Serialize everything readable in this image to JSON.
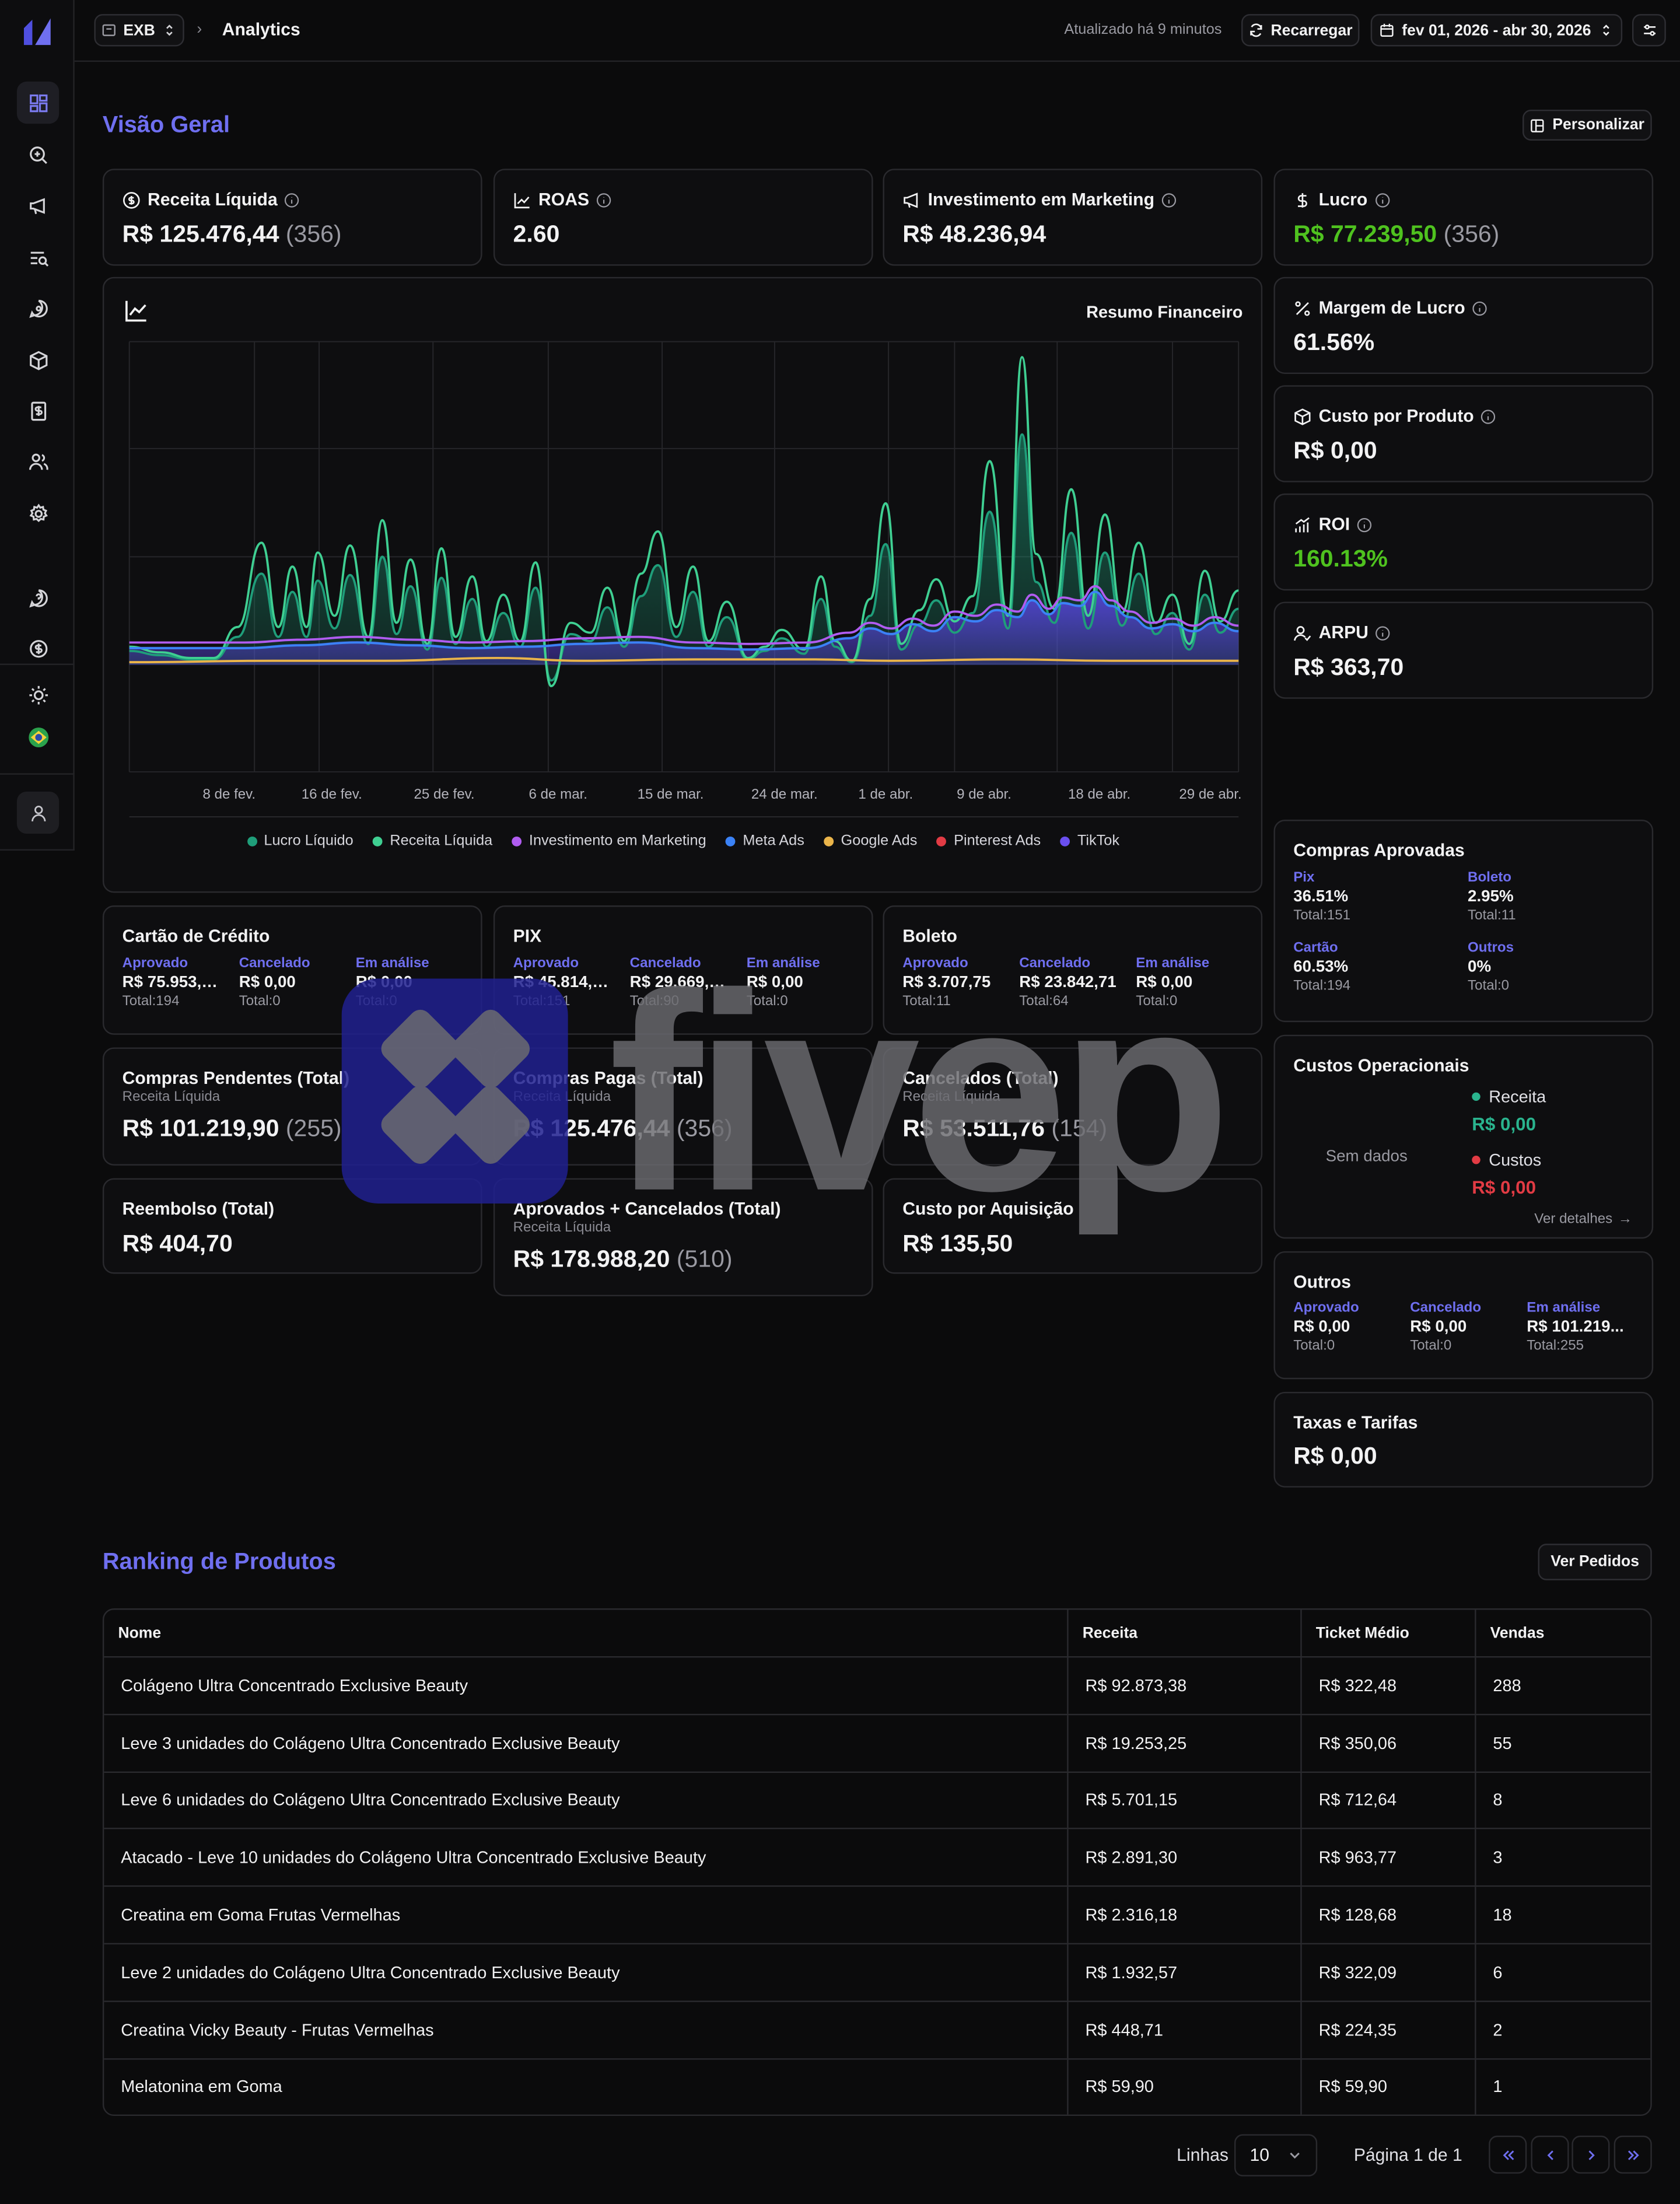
{
  "header": {
    "store_badge": "EXB",
    "breadcrumb": "Analytics",
    "updated": "Atualizado há 9 minutos",
    "reload_label": "Recarregar",
    "date_range": "fev 01, 2026 - abr 30, 2026"
  },
  "overview": {
    "title": "Visão Geral",
    "customize_label": "Personalizar",
    "kpis": {
      "receita_liquida": {
        "label": "Receita Líquida",
        "value": "R$ 125.476,44",
        "count": "(356)"
      },
      "roas": {
        "label": "ROAS",
        "value": "2.60"
      },
      "investimento": {
        "label": "Investimento em Marketing",
        "value": "R$ 48.236,94"
      },
      "lucro": {
        "label": "Lucro",
        "value": "R$ 77.239,50",
        "count": "(356)"
      },
      "margem": {
        "label": "Margem de Lucro",
        "value": "61.56%"
      },
      "custo_produto": {
        "label": "Custo por Produto",
        "value": "R$ 0,00"
      },
      "roi": {
        "label": "ROI",
        "value": "160.13%"
      },
      "arpu": {
        "label": "ARPU",
        "value": "R$ 363,70"
      }
    },
    "chart_title": "Resumo Financeiro"
  },
  "chart_data": {
    "type": "area",
    "title": "Resumo Financeiro",
    "x_ticks": [
      "8 de fev.",
      "16 de fev.",
      "25 de fev.",
      "6 de mar.",
      "15 de mar.",
      "24 de mar.",
      "1 de abr.",
      "9 de abr.",
      "18 de abr.",
      "29 de abr."
    ],
    "grid": true,
    "legend_position": "bottom",
    "series": [
      {
        "name": "Lucro Líquido",
        "color": "#1f9e7a"
      },
      {
        "name": "Receita Líquida",
        "color": "#3fcf92"
      },
      {
        "name": "Investimento em Marketing",
        "color": "#b05cf0"
      },
      {
        "name": "Meta Ads",
        "color": "#3b82f6"
      },
      {
        "name": "Google Ads",
        "color": "#eab44a"
      },
      {
        "name": "Pinterest Ads",
        "color": "#e23b44"
      },
      {
        "name": "TikTok",
        "color": "#6a4ff0"
      }
    ]
  },
  "payments": {
    "credito": {
      "title": "Cartão de Crédito",
      "cols": [
        {
          "label": "Aprovado",
          "value": "R$ 75.953,…",
          "total": "Total:194"
        },
        {
          "label": "Cancelado",
          "value": "R$ 0,00",
          "total": "Total:0"
        },
        {
          "label": "Em análise",
          "value": "R$ 0,00",
          "total": "Total:0"
        }
      ]
    },
    "pix": {
      "title": "PIX",
      "cols": [
        {
          "label": "Aprovado",
          "value": "R$ 45.814,…",
          "total": "Total:151"
        },
        {
          "label": "Cancelado",
          "value": "R$ 29.669,…",
          "total": "Total:90"
        },
        {
          "label": "Em análise",
          "value": "R$ 0,00",
          "total": "Total:0"
        }
      ]
    },
    "boleto": {
      "title": "Boleto",
      "cols": [
        {
          "label": "Aprovado",
          "value": "R$ 3.707,75",
          "total": "Total:11"
        },
        {
          "label": "Cancelado",
          "value": "R$ 23.842,71",
          "total": "Total:64"
        },
        {
          "label": "Em análise",
          "value": "R$ 0,00",
          "total": "Total:0"
        }
      ]
    }
  },
  "totals": {
    "pendentes": {
      "title": "Compras Pendentes (Total)",
      "sub": "Receita Líquida",
      "value": "R$ 101.219,90",
      "count": "(255)"
    },
    "pagas": {
      "title": "Compras Pagas (Total)",
      "sub": "Receita Líquida",
      "value": "R$ 125.476,44",
      "count": "(356)"
    },
    "cancelados": {
      "title": "Cancelados (Total)",
      "sub": "Receita Líquida",
      "value": "R$ 53.511,76",
      "count": "(154)"
    },
    "reembolso": {
      "title": "Reembolso (Total)",
      "value": "R$ 404,70"
    },
    "aprov_canc": {
      "title": "Aprovados + Cancelados (Total)",
      "sub": "Receita Líquida",
      "value": "R$ 178.988,20",
      "count": "(510)"
    },
    "cpa": {
      "title": "Custo por Aquisição",
      "value": "R$ 135,50"
    }
  },
  "compras_aprovadas": {
    "title": "Compras Aprovadas",
    "items": [
      {
        "label": "Pix",
        "pct": "36.51%",
        "total": "Total:151"
      },
      {
        "label": "Boleto",
        "pct": "2.95%",
        "total": "Total:11"
      },
      {
        "label": "Cartão",
        "pct": "60.53%",
        "total": "Total:194"
      },
      {
        "label": "Outros",
        "pct": "0%",
        "total": "Total:0"
      }
    ]
  },
  "custos_operacionais": {
    "title": "Custos Operacionais",
    "empty": "Sem dados",
    "receita_label": "Receita",
    "receita_value": "R$ 0,00",
    "custos_label": "Custos",
    "custos_value": "R$ 0,00",
    "details_link": "Ver detalhes"
  },
  "outros": {
    "title": "Outros",
    "cols": [
      {
        "label": "Aprovado",
        "value": "R$ 0,00",
        "total": "Total:0"
      },
      {
        "label": "Cancelado",
        "value": "R$ 0,00",
        "total": "Total:0"
      },
      {
        "label": "Em análise",
        "value": "R$ 101.219...",
        "total": "Total:255"
      }
    ]
  },
  "taxas": {
    "title": "Taxas e Tarifas",
    "value": "R$ 0,00"
  },
  "ranking": {
    "title": "Ranking de Produtos",
    "orders_button": "Ver Pedidos",
    "columns": [
      "Nome",
      "Receita",
      "Ticket Médio",
      "Vendas"
    ],
    "rows": [
      [
        "Colágeno Ultra Concentrado Exclusive Beauty",
        "R$ 92.873,38",
        "R$ 322,48",
        "288"
      ],
      [
        "Leve 3 unidades do Colágeno Ultra Concentrado Exclusive Beauty",
        "R$ 19.253,25",
        "R$ 350,06",
        "55"
      ],
      [
        "Leve 6 unidades do Colágeno Ultra Concentrado Exclusive Beauty",
        "R$ 5.701,15",
        "R$ 712,64",
        "8"
      ],
      [
        "Atacado - Leve 10 unidades do Colágeno Ultra Concentrado Exclusive Beauty",
        "R$ 2.891,30",
        "R$ 963,77",
        "3"
      ],
      [
        "Creatina em Goma Frutas Vermelhas",
        "R$ 2.316,18",
        "R$ 128,68",
        "18"
      ],
      [
        "Leve 2 unidades do Colágeno Ultra Concentrado Exclusive Beauty",
        "R$ 1.932,57",
        "R$ 322,09",
        "6"
      ],
      [
        "Creatina Vicky Beauty - Frutas Vermelhas",
        "R$ 448,71",
        "R$ 224,35",
        "2"
      ],
      [
        "Melatonina em Goma",
        "R$ 59,90",
        "R$ 59,90",
        "1"
      ]
    ]
  },
  "pagination": {
    "rows_label": "Linhas",
    "rows_value": "10",
    "page_label": "Página 1 de 1"
  },
  "watermark": {
    "text": "fivep"
  }
}
